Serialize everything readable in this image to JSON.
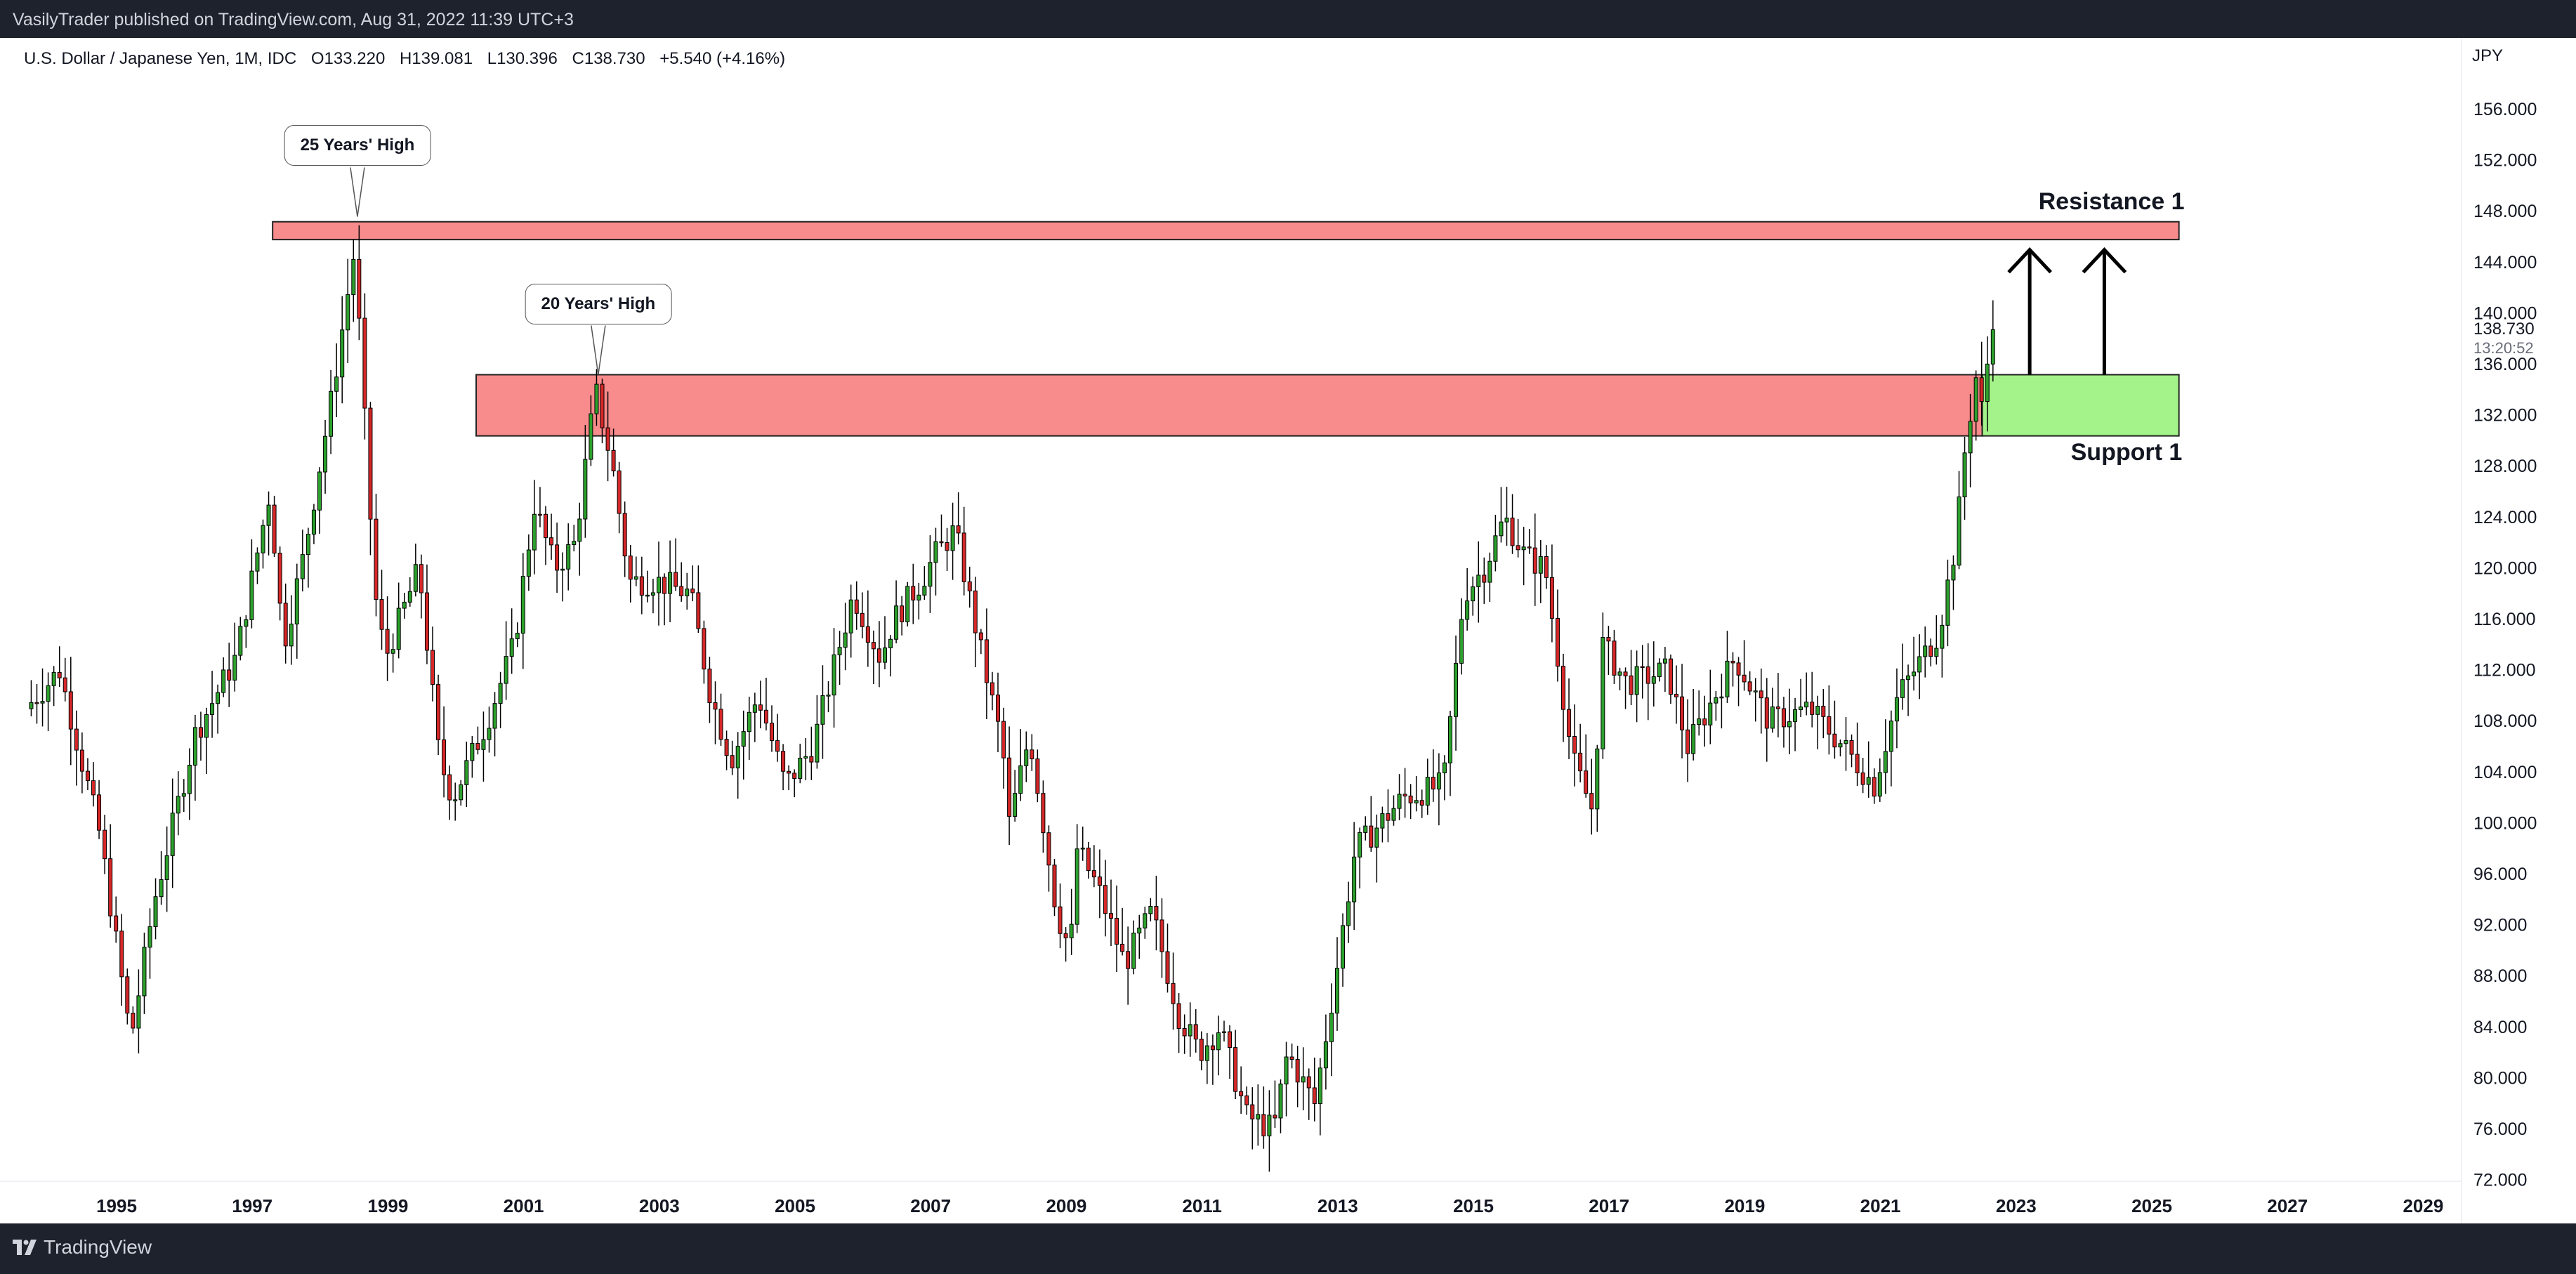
{
  "header": {
    "published_by": "VasilyTrader published on TradingView.com, Aug 31, 2022 11:39 UTC+3"
  },
  "footer": {
    "brand": "TradingView"
  },
  "legend": {
    "symbol": "U.S. Dollar / Japanese Yen, 1M, IDC",
    "open": "O133.220",
    "high": "H139.081",
    "low": "L130.396",
    "close": "C138.730",
    "change": "+5.540 (+4.16%)"
  },
  "price_axis": {
    "currency": "JPY",
    "last_price": "138.730",
    "countdown": "13:20:52"
  },
  "annotations": {
    "callout_25y": "25 Years' High",
    "callout_20y": "20 Years' High",
    "resistance_label": "Resistance 1",
    "support_label": "Support 1"
  },
  "colors": {
    "bull": "#2ca02c",
    "bear": "#d62728",
    "resistance_fill": "#f88b8b",
    "support_fill": "#a4f38a",
    "background": "#ffffff",
    "frame": "#1e222d"
  },
  "chart_data": {
    "type": "candlestick",
    "title": "U.S. Dollar / Japanese Yen, 1M, IDC",
    "xlabel": "",
    "ylabel": "JPY",
    "ylim": [
      72,
      160
    ],
    "xlim": [
      1993.6,
      2030.0
    ],
    "x_ticks": [
      "1995",
      "1997",
      "1999",
      "2001",
      "2003",
      "2005",
      "2007",
      "2009",
      "2011",
      "2013",
      "2015",
      "2017",
      "2019",
      "2021",
      "2023",
      "2025",
      "2027",
      "2029"
    ],
    "y_ticks": [
      "72.000",
      "76.000",
      "80.000",
      "84.000",
      "88.000",
      "92.000",
      "96.000",
      "100.000",
      "104.000",
      "108.000",
      "112.000",
      "116.000",
      "120.000",
      "124.000",
      "128.000",
      "132.000",
      "136.000",
      "140.000",
      "144.000",
      "148.000",
      "152.000",
      "156.000"
    ],
    "price_anchors": [
      {
        "t": 1993.7,
        "p": 109
      },
      {
        "t": 1994.2,
        "p": 112
      },
      {
        "t": 1994.8,
        "p": 99
      },
      {
        "t": 1995.25,
        "p": 83
      },
      {
        "t": 1995.6,
        "p": 94
      },
      {
        "t": 1996.2,
        "p": 107
      },
      {
        "t": 1996.8,
        "p": 113
      },
      {
        "t": 1997.3,
        "p": 126
      },
      {
        "t": 1997.5,
        "p": 114
      },
      {
        "t": 1997.8,
        "p": 121
      },
      {
        "t": 1998.2,
        "p": 133
      },
      {
        "t": 1998.55,
        "p": 145
      },
      {
        "t": 1998.85,
        "p": 118
      },
      {
        "t": 1999.0,
        "p": 113
      },
      {
        "t": 1999.5,
        "p": 120
      },
      {
        "t": 1999.8,
        "p": 105
      },
      {
        "t": 2000.0,
        "p": 102
      },
      {
        "t": 2000.5,
        "p": 108
      },
      {
        "t": 2000.9,
        "p": 114
      },
      {
        "t": 2001.2,
        "p": 125
      },
      {
        "t": 2001.5,
        "p": 120
      },
      {
        "t": 2001.8,
        "p": 122
      },
      {
        "t": 2002.1,
        "p": 134
      },
      {
        "t": 2002.35,
        "p": 128
      },
      {
        "t": 2002.6,
        "p": 119
      },
      {
        "t": 2003.0,
        "p": 119
      },
      {
        "t": 2003.5,
        "p": 118
      },
      {
        "t": 2003.8,
        "p": 110
      },
      {
        "t": 2004.1,
        "p": 105
      },
      {
        "t": 2004.5,
        "p": 110
      },
      {
        "t": 2004.9,
        "p": 103
      },
      {
        "t": 2005.3,
        "p": 106
      },
      {
        "t": 2005.9,
        "p": 118
      },
      {
        "t": 2006.3,
        "p": 113
      },
      {
        "t": 2006.5,
        "p": 116
      },
      {
        "t": 2006.9,
        "p": 119
      },
      {
        "t": 2007.1,
        "p": 121
      },
      {
        "t": 2007.4,
        "p": 123
      },
      {
        "t": 2007.8,
        "p": 113
      },
      {
        "t": 2008.1,
        "p": 106
      },
      {
        "t": 2008.2,
        "p": 100
      },
      {
        "t": 2008.5,
        "p": 107
      },
      {
        "t": 2008.9,
        "p": 93
      },
      {
        "t": 2009.1,
        "p": 90
      },
      {
        "t": 2009.2,
        "p": 98
      },
      {
        "t": 2009.5,
        "p": 95
      },
      {
        "t": 2009.9,
        "p": 89
      },
      {
        "t": 2010.3,
        "p": 93
      },
      {
        "t": 2010.7,
        "p": 85
      },
      {
        "t": 2011.0,
        "p": 82
      },
      {
        "t": 2011.3,
        "p": 84
      },
      {
        "t": 2011.7,
        "p": 77
      },
      {
        "t": 2012.1,
        "p": 76
      },
      {
        "t": 2012.3,
        "p": 82
      },
      {
        "t": 2012.7,
        "p": 78
      },
      {
        "t": 2012.95,
        "p": 86
      },
      {
        "t": 2013.3,
        "p": 98
      },
      {
        "t": 2013.5,
        "p": 99
      },
      {
        "t": 2014.0,
        "p": 102
      },
      {
        "t": 2014.6,
        "p": 103
      },
      {
        "t": 2014.9,
        "p": 118
      },
      {
        "t": 2015.2,
        "p": 120
      },
      {
        "t": 2015.5,
        "p": 124
      },
      {
        "t": 2015.8,
        "p": 121
      },
      {
        "t": 2016.1,
        "p": 120
      },
      {
        "t": 2016.5,
        "p": 105
      },
      {
        "t": 2016.8,
        "p": 101
      },
      {
        "t": 2016.95,
        "p": 114
      },
      {
        "t": 2017.3,
        "p": 111
      },
      {
        "t": 2017.9,
        "p": 112
      },
      {
        "t": 2018.2,
        "p": 106
      },
      {
        "t": 2018.9,
        "p": 113
      },
      {
        "t": 2019.4,
        "p": 108
      },
      {
        "t": 2020.0,
        "p": 109
      },
      {
        "t": 2020.5,
        "p": 106
      },
      {
        "t": 2020.95,
        "p": 103
      },
      {
        "t": 2021.3,
        "p": 110
      },
      {
        "t": 2021.9,
        "p": 115
      },
      {
        "t": 2022.15,
        "p": 122
      },
      {
        "t": 2022.3,
        "p": 130
      },
      {
        "t": 2022.45,
        "p": 135
      },
      {
        "t": 2022.55,
        "p": 132
      },
      {
        "t": 2022.66,
        "p": 138.73
      }
    ],
    "zones": {
      "resistance_1": {
        "from": 1997.3,
        "to": 2025.4,
        "low": 145.8,
        "high": 147.2
      },
      "old_resistance": {
        "from": 2000.3,
        "to": 2022.5,
        "low": 130.4,
        "high": 135.2
      },
      "support_1": {
        "from": 2022.5,
        "to": 2025.4,
        "low": 130.4,
        "high": 135.2
      }
    },
    "highs": [
      {
        "label": "25 Years' High",
        "t": 1998.55,
        "p": 147.6
      },
      {
        "label": "20 Years' High",
        "t": 2002.1,
        "p": 135.2
      }
    ],
    "arrows": [
      {
        "t": 2023.2,
        "from": 135.2,
        "to": 145.0
      },
      {
        "t": 2024.3,
        "from": 135.2,
        "to": 145.0
      }
    ],
    "grid": false,
    "legend": "top-left"
  }
}
